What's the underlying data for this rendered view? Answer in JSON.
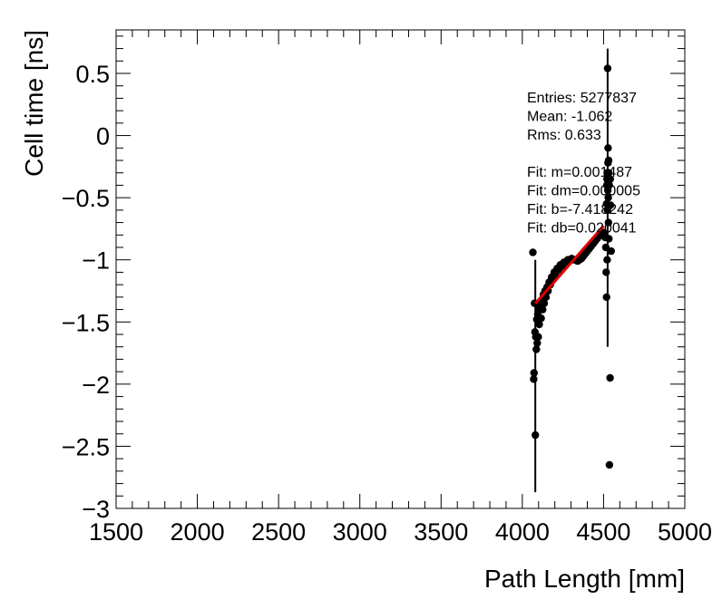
{
  "chart_data": {
    "type": "scatter",
    "xlabel": "Path Length [mm]",
    "ylabel": "Cell time [ns]",
    "xlim": [
      1500,
      5000
    ],
    "ylim": [
      -3.0,
      0.85
    ],
    "x_ticks": [
      1500,
      2000,
      2500,
      3000,
      3500,
      4000,
      4500,
      5000
    ],
    "x_tick_labels": [
      "1500",
      "2000",
      "2500",
      "3000",
      "3500",
      "4000",
      "4500",
      "5000"
    ],
    "y_ticks": [
      -3,
      -2.5,
      -2,
      -1.5,
      -1,
      -0.5,
      0,
      0.5
    ],
    "y_tick_labels": [
      "−3",
      "−2.5",
      "−2",
      "−1.5",
      "−1",
      "−0.5",
      "0",
      "0.5"
    ],
    "grid": false,
    "stats_box": [
      "Entries: 5277837",
      "Mean: -1.062",
      "Rms: 0.633",
      "",
      "Fit: m=0.001487",
      "Fit: dm=0.000005",
      "Fit: b=-7.418242",
      "Fit: db=0.020041"
    ],
    "fit_line": {
      "x": [
        4080,
        4500
      ],
      "y": [
        -1.351,
        -0.727
      ]
    },
    "error_bars": [
      {
        "x": 4080,
        "ylow": -2.87,
        "yhigh": -1.0
      },
      {
        "x": 4525,
        "ylow": -1.7,
        "yhigh": 0.7
      }
    ],
    "series": [
      {
        "color": "#000000",
        "points": [
          [
            4065,
            -0.94
          ],
          [
            4070,
            -1.96
          ],
          [
            4072,
            -1.91
          ],
          [
            4075,
            -1.35
          ],
          [
            4078,
            -1.58
          ],
          [
            4080,
            -2.41
          ],
          [
            4083,
            -1.62
          ],
          [
            4086,
            -1.72
          ],
          [
            4089,
            -1.48
          ],
          [
            4092,
            -1.67
          ],
          [
            4095,
            -1.44
          ],
          [
            4098,
            -1.62
          ],
          [
            4101,
            -1.38
          ],
          [
            4104,
            -1.52
          ],
          [
            4108,
            -1.4
          ],
          [
            4112,
            -1.36
          ],
          [
            4116,
            -1.47
          ],
          [
            4120,
            -1.33
          ],
          [
            4125,
            -1.4
          ],
          [
            4130,
            -1.28
          ],
          [
            4135,
            -1.35
          ],
          [
            4140,
            -1.25
          ],
          [
            4146,
            -1.3
          ],
          [
            4152,
            -1.22
          ],
          [
            4158,
            -1.25
          ],
          [
            4165,
            -1.18
          ],
          [
            4172,
            -1.2
          ],
          [
            4180,
            -1.14
          ],
          [
            4188,
            -1.16
          ],
          [
            4196,
            -1.1
          ],
          [
            4205,
            -1.12
          ],
          [
            4214,
            -1.07
          ],
          [
            4224,
            -1.08
          ],
          [
            4234,
            -1.04
          ],
          [
            4245,
            -1.05
          ],
          [
            4256,
            -1.02
          ],
          [
            4268,
            -1.02
          ],
          [
            4280,
            -1.0
          ],
          [
            4292,
            -1.0
          ],
          [
            4304,
            -0.99
          ],
          [
            4316,
            -1.0
          ],
          [
            4328,
            -1.0
          ],
          [
            4340,
            -1.01
          ],
          [
            4352,
            -1.0
          ],
          [
            4364,
            -0.99
          ],
          [
            4376,
            -0.97
          ],
          [
            4388,
            -0.95
          ],
          [
            4400,
            -0.93
          ],
          [
            4412,
            -0.91
          ],
          [
            4424,
            -0.89
          ],
          [
            4436,
            -0.87
          ],
          [
            4448,
            -0.85
          ],
          [
            4460,
            -0.83
          ],
          [
            4472,
            -0.81
          ],
          [
            4484,
            -0.8
          ],
          [
            4496,
            -0.78
          ],
          [
            4505,
            -0.8
          ],
          [
            4510,
            -0.82
          ],
          [
            4514,
            -0.9
          ],
          [
            4516,
            -1.1
          ],
          [
            4518,
            -1.3
          ],
          [
            4519,
            -0.55
          ],
          [
            4520,
            -0.4
          ],
          [
            4521,
            -0.35
          ],
          [
            4522,
            -1.0
          ],
          [
            4523,
            -0.3
          ],
          [
            4524,
            -0.6
          ],
          [
            4525,
            0.54
          ],
          [
            4526,
            -0.44
          ],
          [
            4527,
            -0.22
          ],
          [
            4528,
            -0.1
          ],
          [
            4529,
            -0.5
          ],
          [
            4530,
            -0.7
          ],
          [
            4531,
            -0.2
          ],
          [
            4532,
            -0.3
          ],
          [
            4533,
            -0.83
          ],
          [
            4535,
            -0.4
          ],
          [
            4536,
            -2.65
          ],
          [
            4540,
            -1.95
          ],
          [
            4541,
            -0.35
          ],
          [
            4543,
            -0.56
          ],
          [
            4547,
            -0.93
          ]
        ]
      }
    ]
  }
}
